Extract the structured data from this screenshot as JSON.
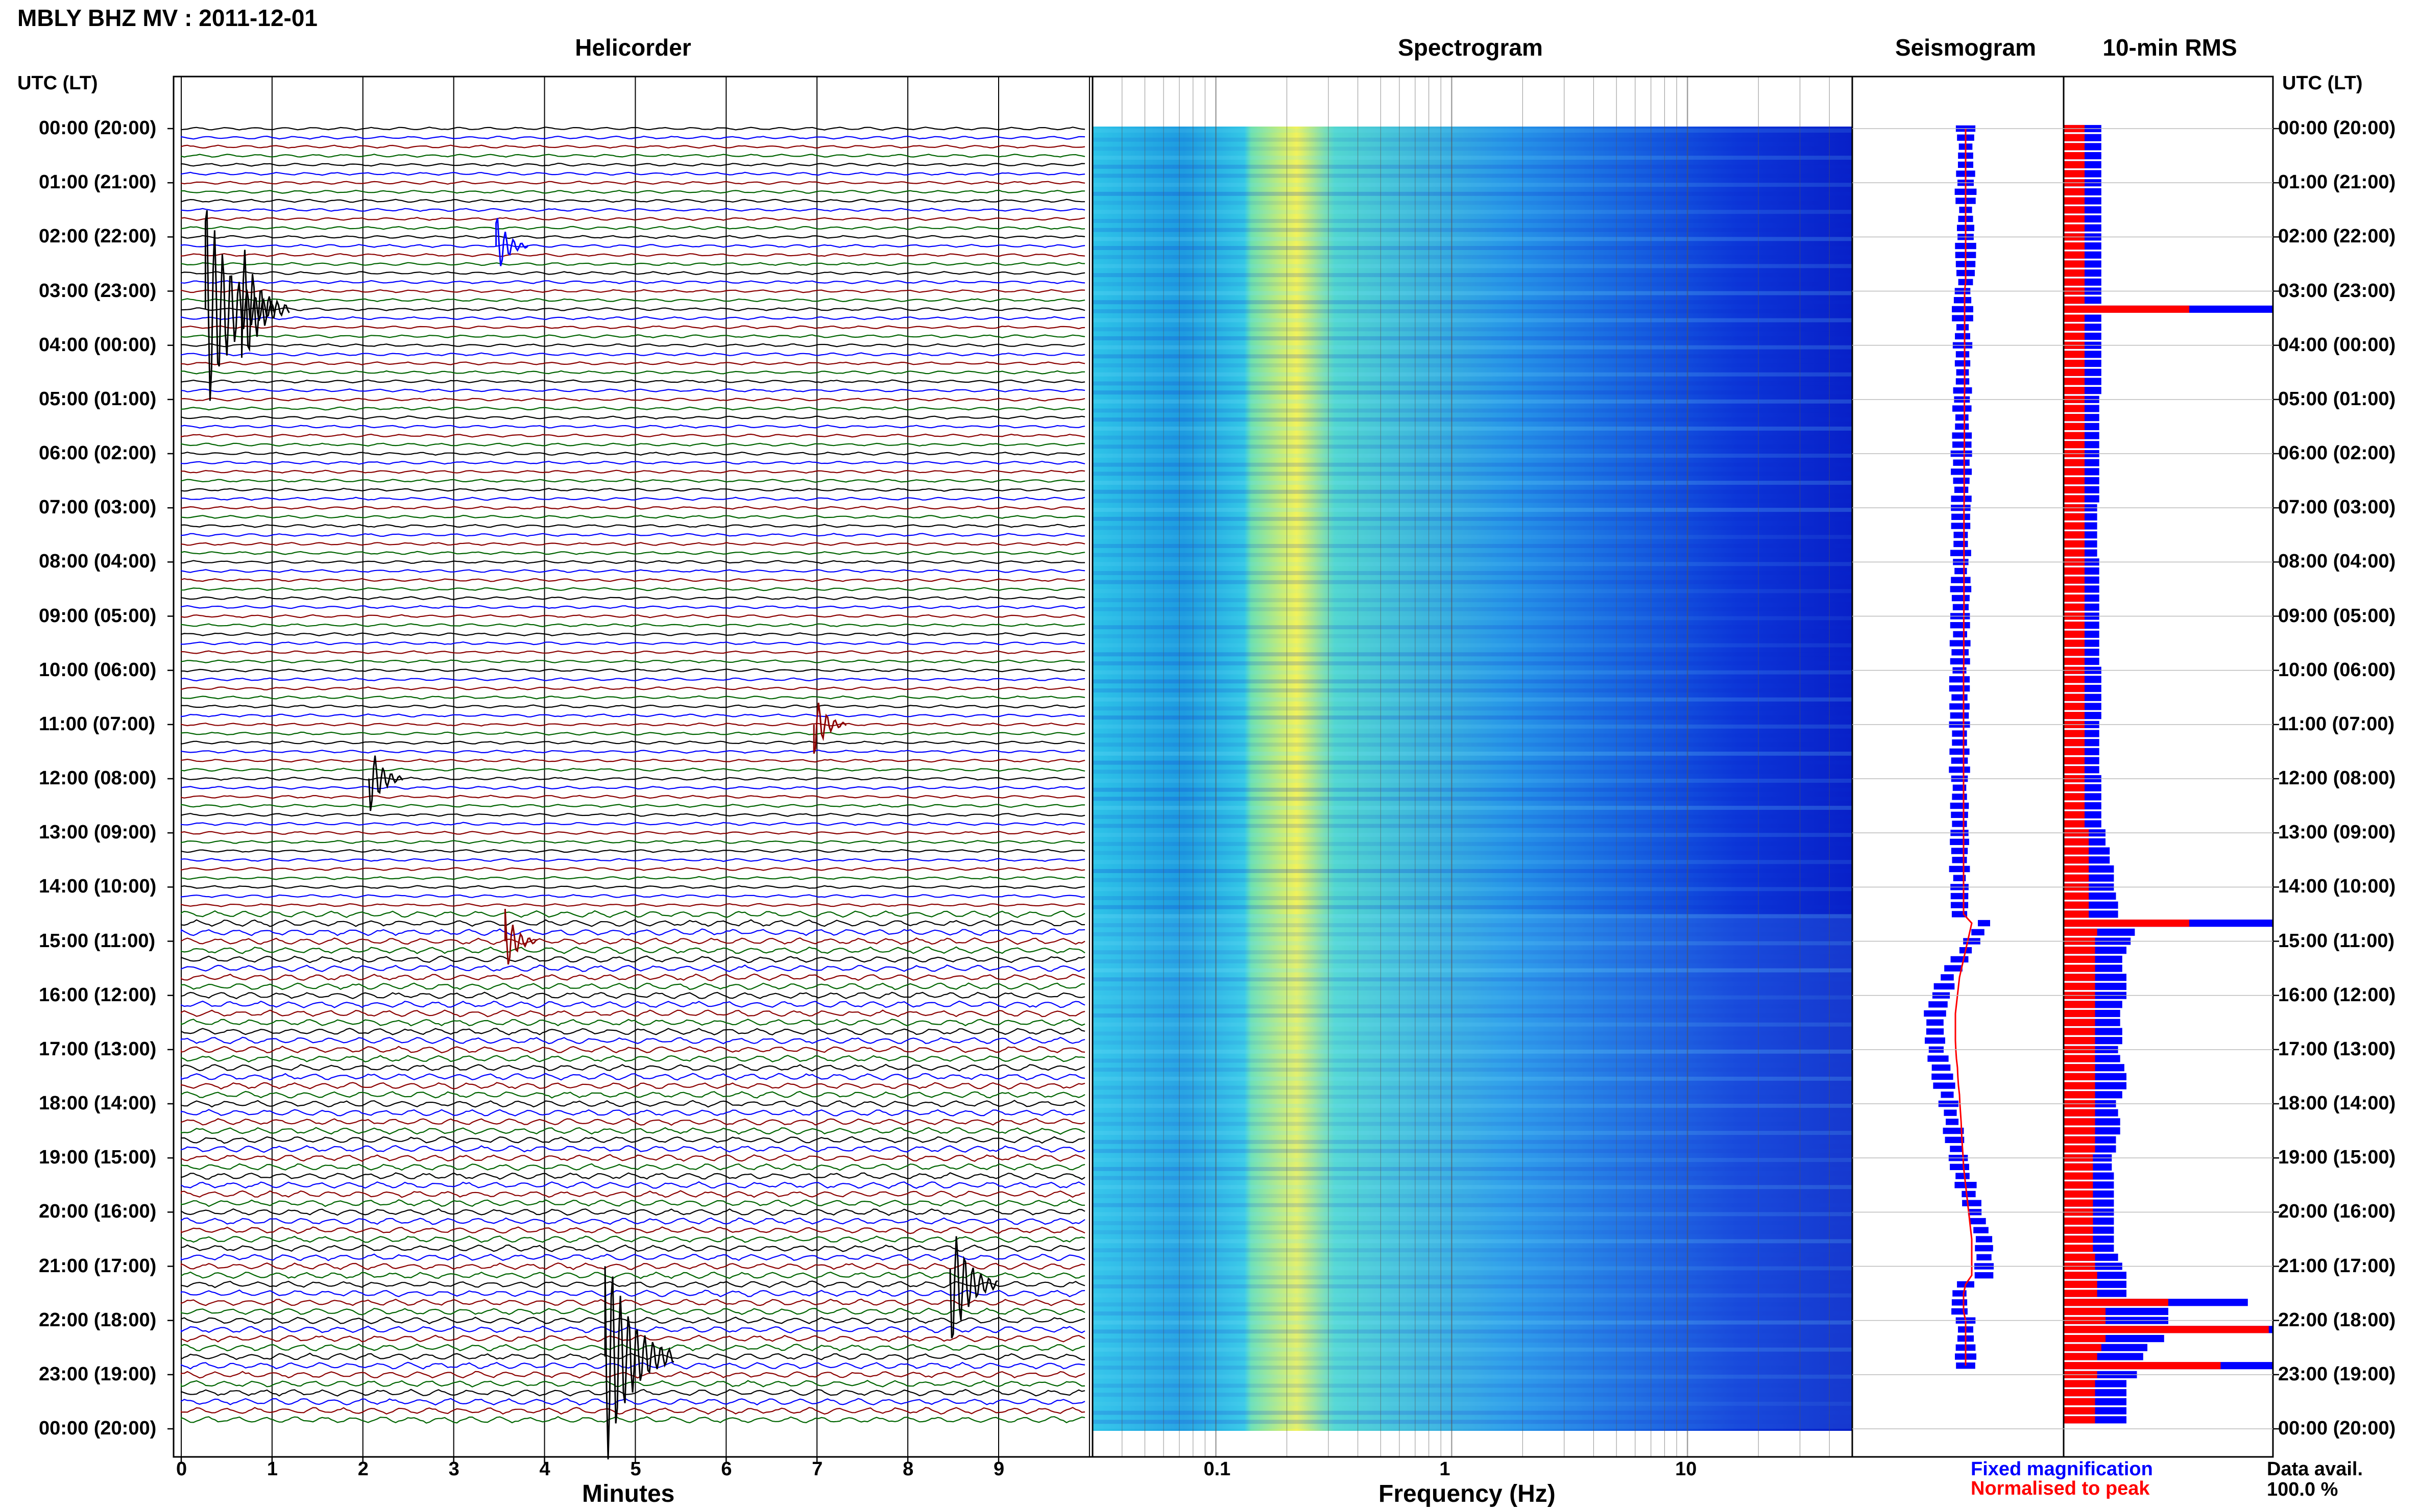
{
  "header": {
    "title": "MBLY BHZ MV : 2011-12-01"
  },
  "panels": {
    "helicorder": "Helicorder",
    "spectrogram": "Spectrogram",
    "seismogram": "Seismogram",
    "rms": "10-min RMS"
  },
  "axis_titles": {
    "utc_left": "UTC (LT)",
    "utc_right": "UTC (LT)",
    "minutes": "Minutes",
    "frequency": "Frequency (Hz)"
  },
  "time_labels": [
    "00:00 (20:00)",
    "01:00 (21:00)",
    "02:00 (22:00)",
    "03:00 (23:00)",
    "04:00 (00:00)",
    "05:00 (01:00)",
    "06:00 (02:00)",
    "07:00 (03:00)",
    "08:00 (04:00)",
    "09:00 (05:00)",
    "10:00 (06:00)",
    "11:00 (07:00)",
    "12:00 (08:00)",
    "13:00 (09:00)",
    "14:00 (10:00)",
    "15:00 (11:00)",
    "16:00 (12:00)",
    "17:00 (13:00)",
    "18:00 (14:00)",
    "19:00 (15:00)",
    "20:00 (16:00)",
    "21:00 (17:00)",
    "22:00 (18:00)",
    "23:00 (19:00)",
    "00:00 (20:00)"
  ],
  "minute_ticks": [
    "0",
    "1",
    "2",
    "3",
    "4",
    "5",
    "6",
    "7",
    "8",
    "9"
  ],
  "freq_ticks": [
    "0.1",
    "1",
    "10"
  ],
  "legend": {
    "fixed": "Fixed magnification",
    "normalised": "Normalised to peak",
    "fixed_color": "#0000ff",
    "normalised_color": "#ff0000"
  },
  "data_avail": {
    "label": "Data avail.",
    "value": "100.0 %"
  },
  "colors": {
    "trace_cycle": [
      "#000000",
      "#0000ff",
      "#8b0000",
      "#006400"
    ],
    "spectro_low": "#0a1fd6",
    "spectro_mid": "#29b6f6",
    "spectro_high": "#ffff66"
  },
  "chart_data": {
    "type": "heatmap",
    "title": "MBLY BHZ MV : 2011-12-01",
    "rows_per_hour": 6,
    "hours": 24,
    "helicorder_events": [
      {
        "utc": "03:20",
        "minute": 0.3,
        "amplitude": 1.0
      },
      {
        "utc": "03:20",
        "minute": 0.7,
        "amplitude": 0.55
      },
      {
        "utc": "02:10",
        "minute": 3.5,
        "amplitude": 0.2
      },
      {
        "utc": "11:00",
        "minute": 7.0,
        "amplitude": 0.2
      },
      {
        "utc": "12:00",
        "minute": 2.1,
        "amplitude": 0.25
      },
      {
        "utc": "15:00",
        "minute": 3.6,
        "amplitude": 0.2
      },
      {
        "utc": "21:20",
        "minute": 8.5,
        "amplitude": 0.55
      },
      {
        "utc": "22:40",
        "minute": 4.7,
        "amplitude": 1.0
      }
    ],
    "freq_range_hz": [
      0.03,
      50
    ],
    "freq_scale": "log",
    "spectro_peak_hz": 0.22,
    "rms_fixed": [
      0.18,
      0.18,
      0.18,
      0.18,
      0.18,
      0.18,
      0.18,
      0.18,
      0.18,
      0.18,
      0.18,
      0.18,
      0.18,
      0.18,
      0.18,
      0.18,
      0.18,
      0.18,
      0.18,
      0.18,
      1.0,
      0.18,
      0.18,
      0.18,
      0.18,
      0.18,
      0.18,
      0.18,
      0.18,
      0.18,
      0.17,
      0.17,
      0.17,
      0.17,
      0.17,
      0.17,
      0.17,
      0.17,
      0.17,
      0.17,
      0.17,
      0.17,
      0.16,
      0.16,
      0.16,
      0.16,
      0.16,
      0.16,
      0.17,
      0.17,
      0.17,
      0.17,
      0.17,
      0.17,
      0.17,
      0.17,
      0.17,
      0.17,
      0.17,
      0.17,
      0.18,
      0.18,
      0.18,
      0.18,
      0.18,
      0.18,
      0.17,
      0.17,
      0.17,
      0.17,
      0.17,
      0.17,
      0.18,
      0.18,
      0.18,
      0.18,
      0.18,
      0.18,
      0.2,
      0.2,
      0.22,
      0.22,
      0.24,
      0.24,
      0.24,
      0.25,
      0.26,
      0.26,
      1.0,
      0.34,
      0.32,
      0.3,
      0.28,
      0.28,
      0.3,
      0.3,
      0.3,
      0.28,
      0.27,
      0.27,
      0.28,
      0.28,
      0.26,
      0.27,
      0.29,
      0.3,
      0.3,
      0.28,
      0.25,
      0.26,
      0.27,
      0.27,
      0.25,
      0.25,
      0.23,
      0.23,
      0.24,
      0.24,
      0.24,
      0.24,
      0.24,
      0.24,
      0.24,
      0.24,
      0.24,
      0.26,
      0.28,
      0.3,
      0.3,
      0.3,
      0.88,
      0.5,
      0.5,
      1.0,
      0.48,
      0.4,
      0.38,
      1.0,
      0.35,
      0.3,
      0.3,
      0.3,
      0.3,
      0.3
    ],
    "rms_normalised": [
      0.1,
      0.1,
      0.1,
      0.1,
      0.1,
      0.1,
      0.1,
      0.1,
      0.1,
      0.1,
      0.1,
      0.1,
      0.1,
      0.1,
      0.1,
      0.1,
      0.1,
      0.1,
      0.1,
      0.1,
      0.6,
      0.1,
      0.1,
      0.1,
      0.1,
      0.1,
      0.1,
      0.1,
      0.1,
      0.1,
      0.1,
      0.1,
      0.1,
      0.1,
      0.1,
      0.1,
      0.1,
      0.1,
      0.1,
      0.1,
      0.1,
      0.1,
      0.1,
      0.1,
      0.1,
      0.1,
      0.1,
      0.1,
      0.1,
      0.1,
      0.1,
      0.1,
      0.1,
      0.1,
      0.1,
      0.1,
      0.1,
      0.1,
      0.1,
      0.1,
      0.1,
      0.1,
      0.1,
      0.1,
      0.1,
      0.1,
      0.1,
      0.1,
      0.1,
      0.1,
      0.1,
      0.1,
      0.1,
      0.1,
      0.1,
      0.1,
      0.1,
      0.1,
      0.12,
      0.12,
      0.12,
      0.12,
      0.12,
      0.12,
      0.12,
      0.12,
      0.12,
      0.12,
      0.6,
      0.16,
      0.15,
      0.15,
      0.15,
      0.15,
      0.15,
      0.15,
      0.15,
      0.15,
      0.15,
      0.15,
      0.15,
      0.15,
      0.15,
      0.15,
      0.15,
      0.15,
      0.15,
      0.15,
      0.15,
      0.15,
      0.15,
      0.15,
      0.15,
      0.15,
      0.14,
      0.14,
      0.14,
      0.14,
      0.14,
      0.14,
      0.14,
      0.14,
      0.14,
      0.14,
      0.14,
      0.15,
      0.15,
      0.16,
      0.16,
      0.16,
      0.5,
      0.2,
      0.2,
      0.98,
      0.2,
      0.18,
      0.16,
      0.75,
      0.16,
      0.15,
      0.15,
      0.15,
      0.15,
      0.15
    ],
    "seismogram_offset": [
      0,
      0,
      0,
      0,
      0,
      0,
      0,
      0,
      0,
      0,
      0,
      0,
      0,
      0,
      0,
      0,
      0,
      0,
      -0.05,
      -0.05,
      -0.05,
      -0.05,
      -0.05,
      -0.05,
      -0.05,
      -0.05,
      -0.05,
      -0.05,
      -0.05,
      -0.05,
      -0.06,
      -0.06,
      -0.06,
      -0.06,
      -0.06,
      -0.06,
      -0.07,
      -0.07,
      -0.07,
      -0.07,
      -0.07,
      -0.07,
      -0.08,
      -0.08,
      -0.08,
      -0.08,
      -0.08,
      -0.08,
      -0.08,
      -0.08,
      -0.08,
      -0.08,
      -0.08,
      -0.08,
      -0.09,
      -0.09,
      -0.09,
      -0.09,
      -0.09,
      -0.09,
      -0.1,
      -0.1,
      -0.1,
      -0.1,
      -0.1,
      -0.1,
      -0.1,
      -0.1,
      -0.1,
      -0.1,
      -0.1,
      -0.1,
      -0.1,
      -0.1,
      -0.1,
      -0.1,
      -0.1,
      -0.1,
      -0.1,
      -0.1,
      -0.1,
      -0.1,
      -0.1,
      -0.1,
      -0.1,
      -0.1,
      -0.1,
      -0.1,
      0.3,
      0.2,
      0.1,
      0.0,
      -0.1,
      -0.2,
      -0.3,
      -0.35,
      -0.4,
      -0.45,
      -0.5,
      -0.5,
      -0.5,
      -0.5,
      -0.48,
      -0.45,
      -0.4,
      -0.38,
      -0.35,
      -0.3,
      -0.28,
      -0.25,
      -0.22,
      -0.2,
      -0.18,
      -0.15,
      -0.12,
      -0.1,
      -0.05,
      0.0,
      0.05,
      0.1,
      0.15,
      0.2,
      0.25,
      0.3,
      0.3,
      0.3,
      0.3,
      0.3,
      0.0,
      -0.1,
      -0.1,
      -0.1,
      0.0,
      0.0,
      0.0,
      0.0,
      0.0,
      0.0
    ]
  }
}
